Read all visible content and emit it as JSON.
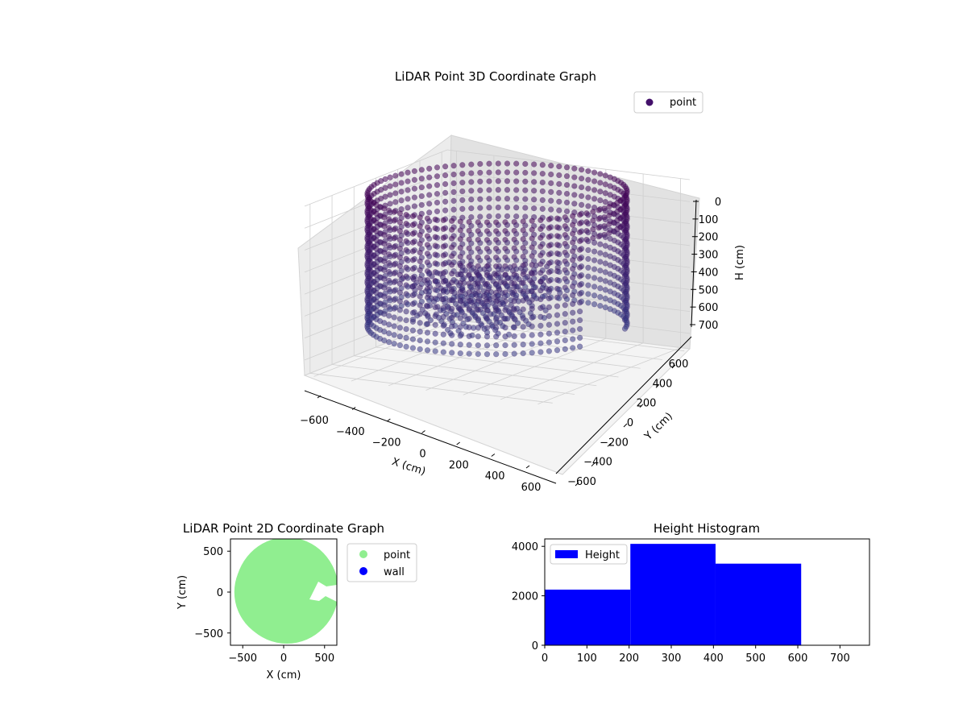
{
  "chart_data": [
    {
      "type": "scatter3d",
      "title": "LiDAR Point 3D Coordinate Graph",
      "xlabel": "X (cm)",
      "ylabel": "Y (cm)",
      "zlabel": "H (cm)",
      "xticks": [
        "−600",
        "−400",
        "−200",
        "0",
        "200",
        "400",
        "600"
      ],
      "yticks": [
        "−600",
        "−400",
        "−200",
        "0",
        "200",
        "400",
        "600"
      ],
      "zticks": [
        "0",
        "100",
        "200",
        "300",
        "400",
        "500",
        "600",
        "700"
      ],
      "xlim": [
        -650,
        650
      ],
      "ylim": [
        -650,
        650
      ],
      "zlim": [
        0,
        770
      ],
      "z_inverted": true,
      "legend": {
        "label": "point",
        "position": "top-right"
      },
      "colormap": "viridis (dark purple dominant)",
      "series": [
        {
          "name": "point",
          "description_ring": {
            "radius": 600,
            "z_range": [
              0,
              600
            ]
          },
          "description_object": {
            "x_range": [
              -300,
              200
            ],
            "y_range": [
              -350,
              250
            ],
            "z_range": [
              350,
              600
            ]
          }
        }
      ]
    },
    {
      "type": "scatter",
      "title": "LiDAR Point 2D Coordinate Graph",
      "xlabel": "X (cm)",
      "ylabel": "Y (cm)",
      "xticks": [
        "−500",
        "0",
        "500"
      ],
      "yticks": [
        "500",
        "0",
        "−500"
      ],
      "xlim": [
        -650,
        650
      ],
      "ylim": [
        -650,
        650
      ],
      "legend": {
        "position": "outside-right"
      },
      "series": [
        {
          "name": "point",
          "color": "#90ee90",
          "fill_radius": 600,
          "gap_x_range": [
            300,
            650
          ],
          "gap_y_range": [
            -100,
            100
          ]
        },
        {
          "name": "wall",
          "color": "#0000ff"
        }
      ]
    },
    {
      "type": "bar",
      "title": "Height Histogram",
      "legend": {
        "label": "Height",
        "color": "#0000ff",
        "position": "top-left"
      },
      "xticks": [
        "0",
        "100",
        "200",
        "300",
        "400",
        "500",
        "600",
        "700"
      ],
      "yticks": [
        "0",
        "2000",
        "4000"
      ],
      "xlim": [
        0,
        770
      ],
      "ylim": [
        0,
        4300
      ],
      "bins": [
        {
          "x0": 0,
          "x1": 203,
          "value": 2250
        },
        {
          "x0": 203,
          "x1": 405,
          "value": 4100
        },
        {
          "x0": 405,
          "x1": 608,
          "value": 3300
        }
      ]
    }
  ]
}
